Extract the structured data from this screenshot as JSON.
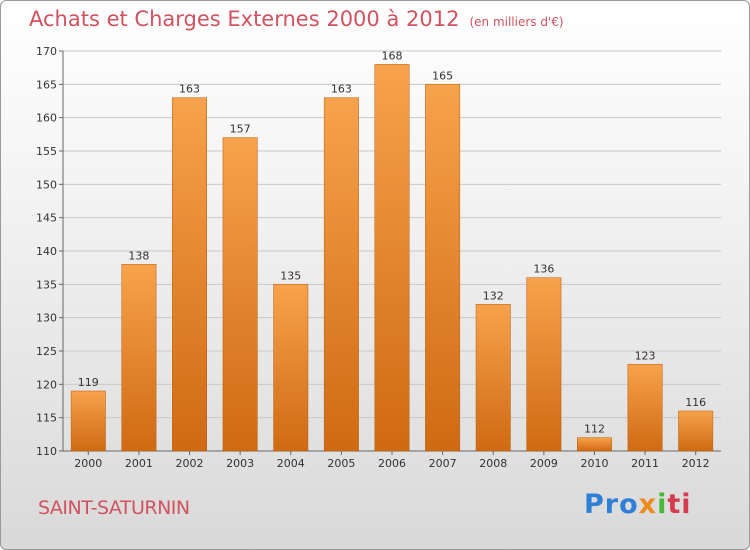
{
  "header": {
    "title": "Achats et Charges Externes 2000 à 2012",
    "subtitle": "(en milliers d'€)"
  },
  "footer": {
    "city": "SAINT-SATURNIN",
    "logo_parts": [
      "Pro",
      "x",
      "i",
      "ti"
    ]
  },
  "colors": {
    "bar_light": "#f7a24c",
    "bar_dark": "#cf6a12",
    "grid": "#c8c8c8",
    "title": "#d2525f"
  },
  "chart_data": {
    "type": "bar",
    "categories": [
      "2000",
      "2001",
      "2002",
      "2003",
      "2004",
      "2005",
      "2006",
      "2007",
      "2008",
      "2009",
      "2010",
      "2011",
      "2012"
    ],
    "values": [
      119,
      138,
      163,
      157,
      135,
      163,
      168,
      165,
      132,
      136,
      112,
      123,
      116
    ],
    "data_labels": [
      "119",
      "138",
      "163",
      "157",
      "135",
      "163",
      "168",
      "165",
      "132",
      "136",
      "112",
      "123",
      "116"
    ],
    "title": "Achats et Charges Externes 2000 à 2012",
    "subtitle": "(en milliers d'€)",
    "xlabel": "",
    "ylabel": "",
    "ylim": [
      110,
      170
    ],
    "yticks": [
      110,
      115,
      120,
      125,
      130,
      135,
      140,
      145,
      150,
      155,
      160,
      165,
      170
    ],
    "ytick_labels": [
      "110",
      "115",
      "120",
      "125",
      "130",
      "135",
      "140",
      "145",
      "150",
      "155",
      "160",
      "165",
      "170"
    ],
    "grid": true,
    "legend": "none"
  }
}
